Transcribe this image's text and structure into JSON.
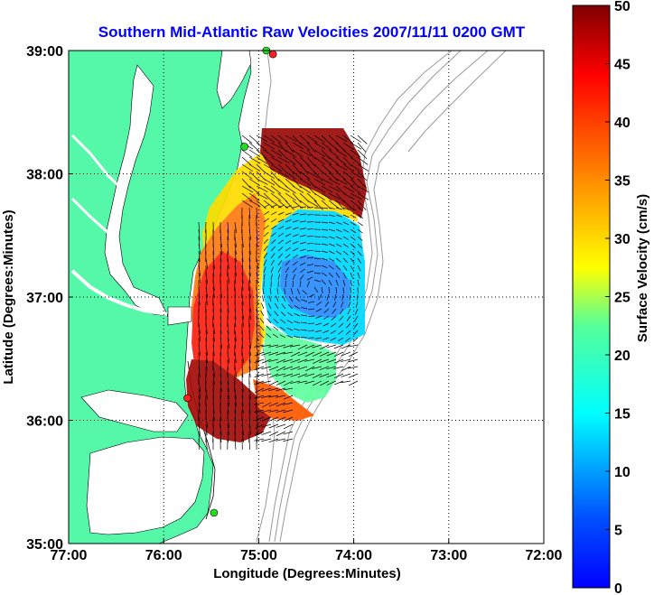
{
  "chart_data": {
    "type": "heatmap",
    "title": "Southern Mid-Atlantic Raw Velocities 2007/11/11 0200 GMT",
    "xlabel": "Longitude (Degrees:Minutes)",
    "ylabel": "Latitude (Degrees:Minutes)",
    "xlim": [
      -77,
      -72
    ],
    "ylim": [
      35,
      39
    ],
    "x_ticks": [
      -77,
      -76,
      -75,
      -74,
      -73,
      -72
    ],
    "x_tick_labels": [
      "77:00",
      "76:00",
      "75:00",
      "74:00",
      "73:00",
      "72:00"
    ],
    "y_ticks": [
      35,
      36,
      37,
      38,
      39
    ],
    "y_tick_labels": [
      "35:00",
      "36:00",
      "37:00",
      "38:00",
      "39:00"
    ],
    "grid": true,
    "colorbar": {
      "label": "Surface Velocity (cm/s)",
      "range": [
        0,
        50
      ],
      "ticks": [
        0,
        5,
        10,
        15,
        20,
        25,
        30,
        35,
        40,
        45,
        50
      ],
      "tick_labels": [
        "0",
        "5",
        "10",
        "15",
        "20",
        "25",
        "30",
        "35",
        "40",
        "45",
        "50"
      ],
      "colormap": "jet"
    },
    "colors": {
      "land": "#55f7a8",
      "water": "#ffffff",
      "bathymetry": "#9a9a9a",
      "title": "#0000ff",
      "station_red": "#ff2020",
      "station_green": "#22dd22"
    },
    "stations": [
      {
        "lon": -74.85,
        "lat": 38.97,
        "color": "red"
      },
      {
        "lon": -74.92,
        "lat": 39.0,
        "color": "green"
      },
      {
        "lon": -75.15,
        "lat": 38.22,
        "color": "green"
      },
      {
        "lon": -75.75,
        "lat": 36.18,
        "color": "red"
      },
      {
        "lon": -75.47,
        "lat": 35.25,
        "color": "green"
      }
    ]
  }
}
